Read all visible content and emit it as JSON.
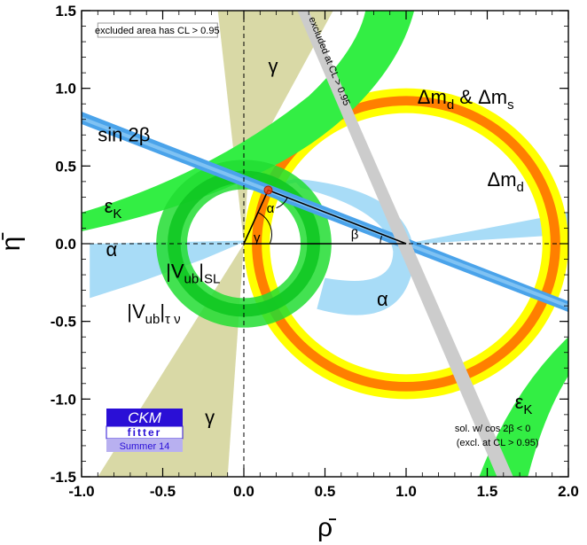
{
  "chart_data": {
    "type": "constraint-plot",
    "xlabel": "ρ̄",
    "ylabel": "η̄",
    "xlim": [
      -1.0,
      2.0
    ],
    "ylim": [
      -1.5,
      1.5
    ],
    "x_ticks": [
      "-1.0",
      "-0.5",
      "0.0",
      "0.5",
      "1.0",
      "1.5",
      "2.0"
    ],
    "y_ticks": [
      "1.5",
      "1.0",
      "0.5",
      "0.0",
      "-0.5",
      "-1.0",
      "-1.5"
    ],
    "x_tick_values": [
      -1.0,
      -0.5,
      0.0,
      0.5,
      1.0,
      1.5,
      2.0
    ],
    "y_tick_values": [
      1.5,
      1.0,
      0.5,
      0.0,
      -0.5,
      -1.0,
      -1.5
    ],
    "apex": {
      "rho": 0.15,
      "eta": 0.345
    },
    "legend_note": "excluded area has CL > 0.95",
    "sin2beta_note": "excluded at CL > 0.95",
    "cos2beta_note_line1": "sol. w/ cos 2β < 0",
    "cos2beta_note_line2": "(excl. at CL > 0.95)",
    "labels": {
      "gamma": "γ",
      "alpha": "α",
      "beta": "β",
      "sin2beta": "sin 2β",
      "epsK_main": "ε",
      "epsK_sub": "K",
      "dm_main": "Δm",
      "dm_sub_d": "d",
      "dm_amp": " & Δm",
      "dm_sub_s": "s",
      "vubsl_main": "|V",
      "vubsl_sub": "ub",
      "vubsl_tail": "|",
      "vubsl_sub2": "SL",
      "vubtau_main": "|V",
      "vubtau_sub": "ub",
      "vubtau_tail": "|",
      "vubtau_sub2": "τ ν"
    },
    "colors": {
      "dm_yellow": "#ffff00",
      "dm_orange": "#ff7f00",
      "epsk_green": "#33ee44",
      "vub_green": "#22dd33",
      "alpha_blue": "#a8dcf7",
      "sin2b_blue": "#4aa3ea",
      "gamma_tan": "#d9d9a6",
      "grey_band": "#cccccc",
      "triangle": "#000000"
    }
  },
  "logo": {
    "title": "CKM",
    "subtitle": "fitter",
    "edition": "Summer 14",
    "color_dark": "#2a0fd6",
    "color_light": "#b8b0f0"
  }
}
